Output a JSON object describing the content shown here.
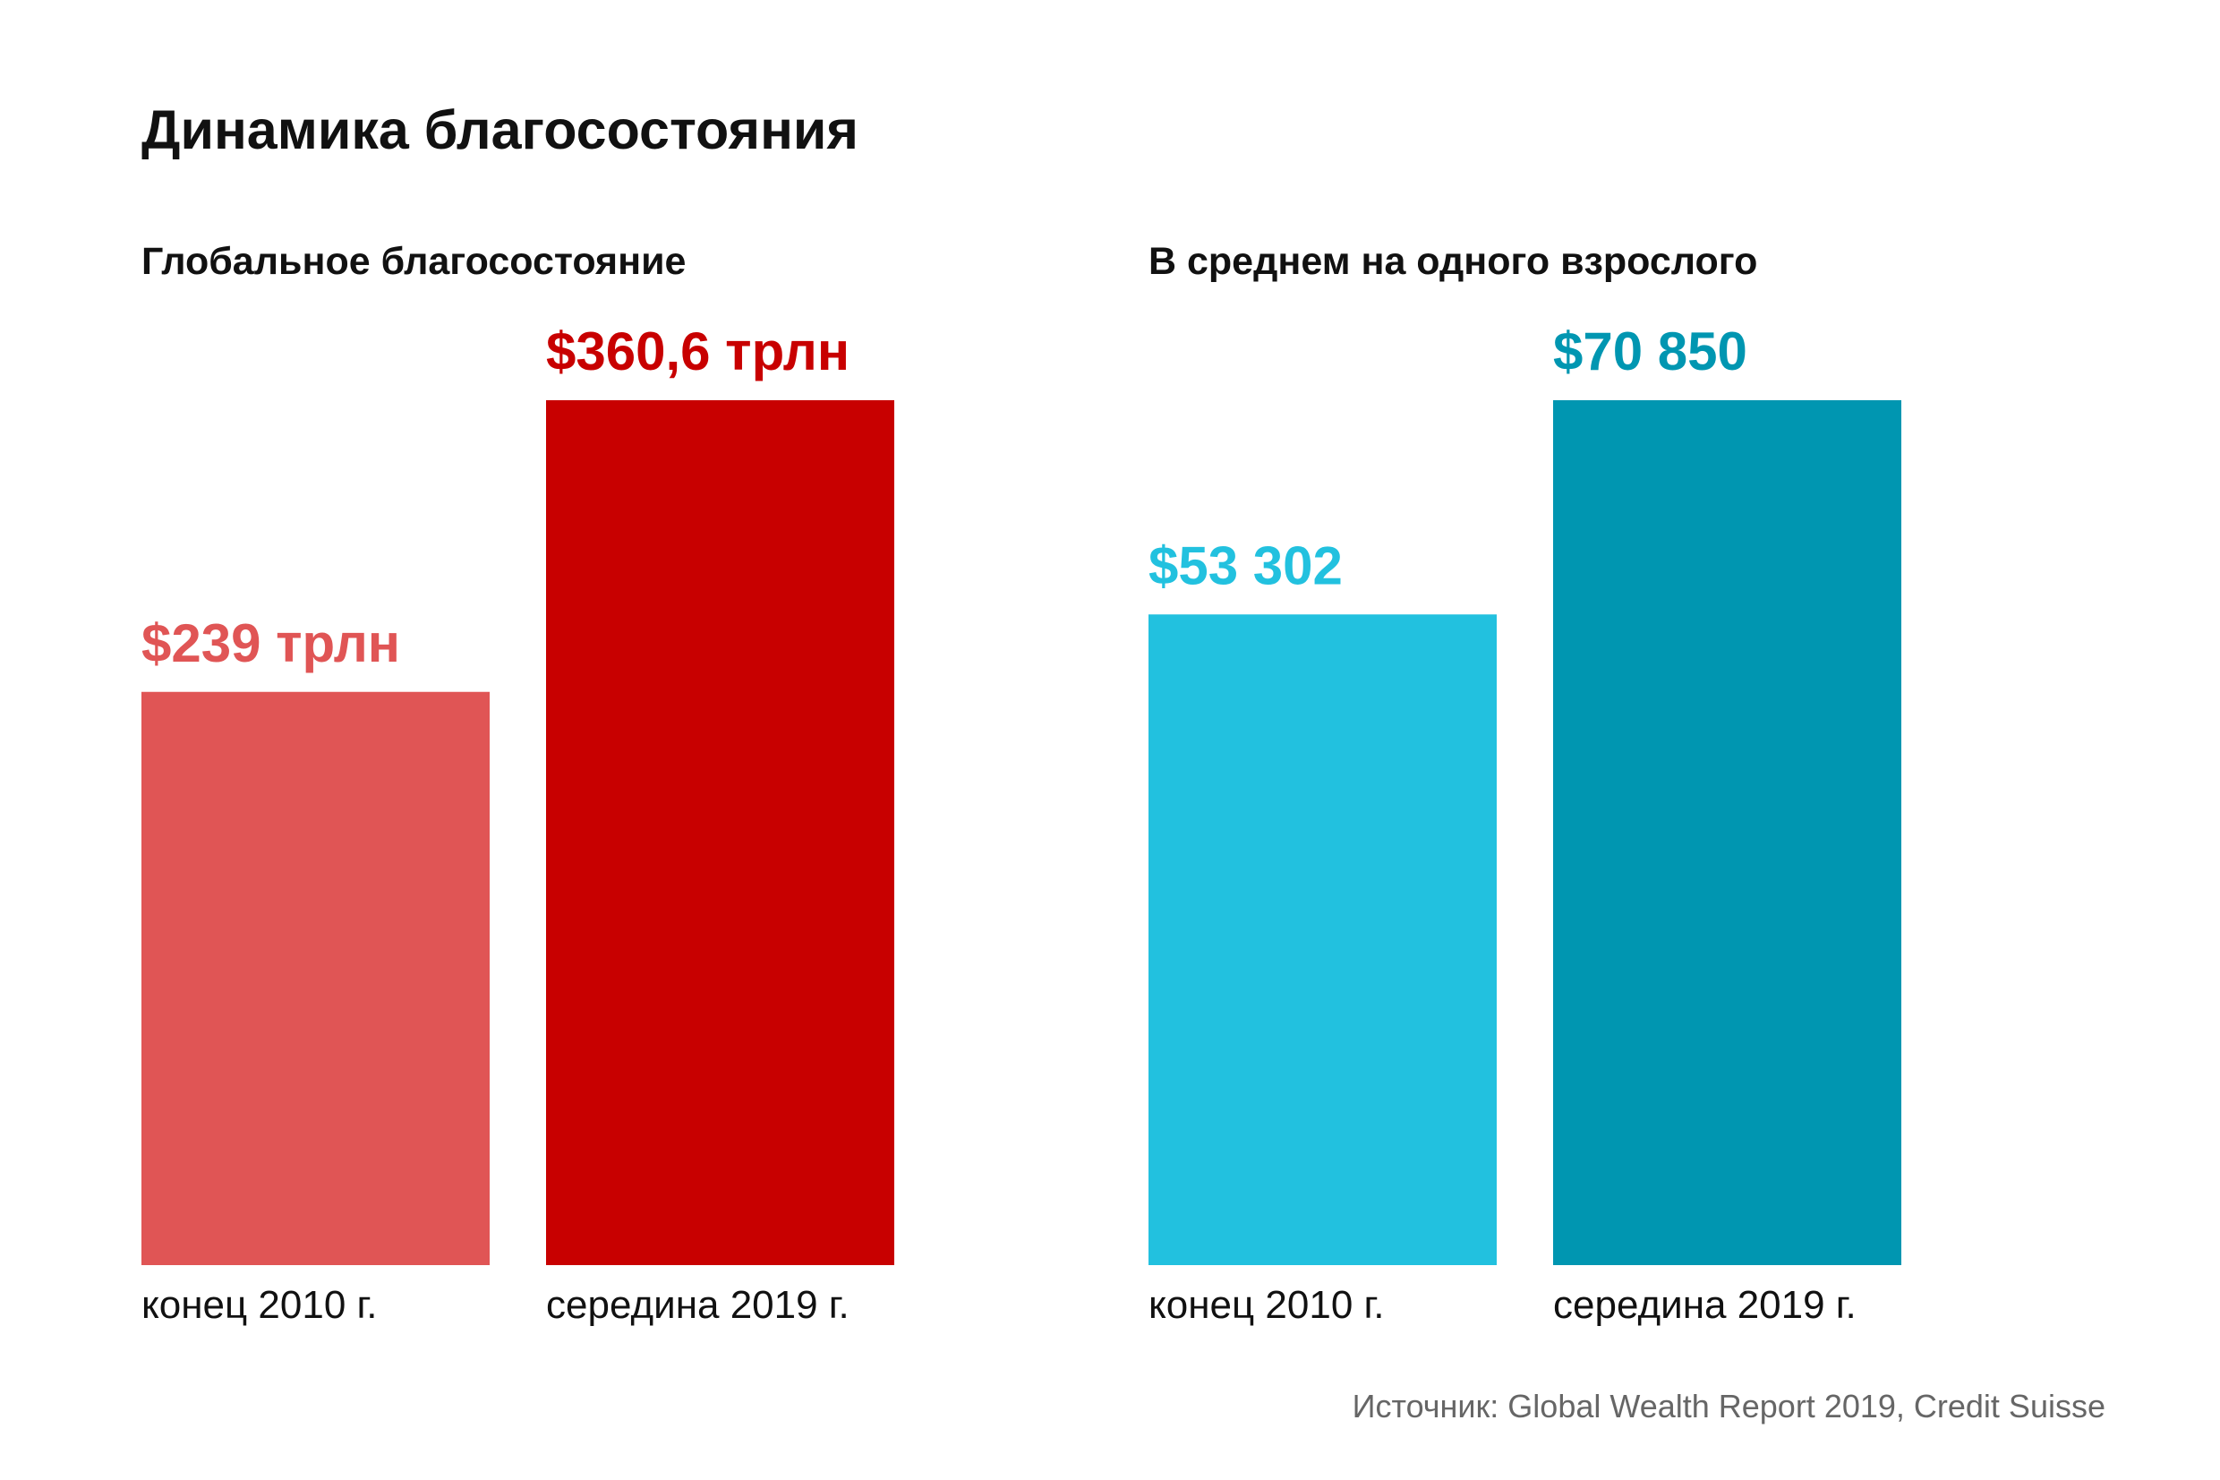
{
  "title": "Динамика благосостояния",
  "source": "Источник: Global Wealth Report 2019, Credit Suisse",
  "chart_data": [
    {
      "type": "bar",
      "title": "Глобальное благосостояние",
      "categories": [
        "конец 2010 г.",
        "середина 2019 г."
      ],
      "values": [
        239,
        360.6
      ],
      "value_labels": [
        "$239 трлн",
        "$360,6 трлн"
      ],
      "colors": [
        "#e05555",
        "#c80000"
      ],
      "unit": "трлн долларов",
      "xlabel": "",
      "ylabel": "",
      "ylim": [
        0,
        360.6
      ],
      "grid": false
    },
    {
      "type": "bar",
      "title": "В среднем на одного взрослого",
      "categories": [
        "конец 2010 г.",
        "середина 2019 г."
      ],
      "values": [
        53302,
        70850
      ],
      "value_labels": [
        "$53 302",
        "$70 850"
      ],
      "colors": [
        "#22c1df",
        "#0096b1"
      ],
      "unit": "долларов",
      "xlabel": "",
      "ylabel": "",
      "ylim": [
        0,
        70850
      ],
      "grid": false
    }
  ]
}
